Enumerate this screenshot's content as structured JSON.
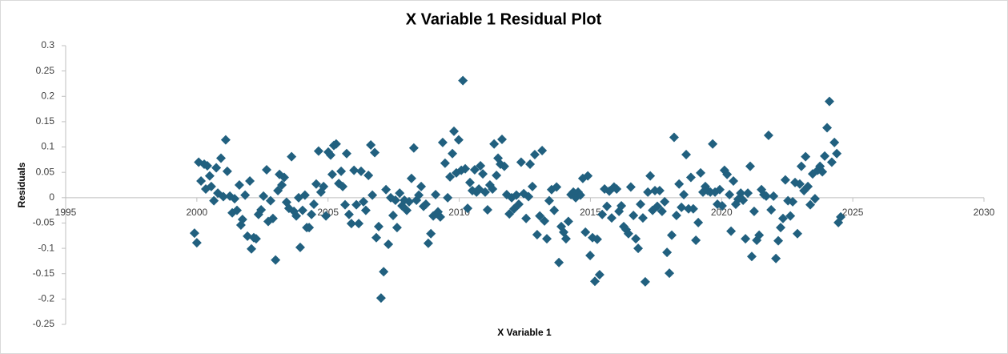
{
  "chart_data": {
    "type": "scatter",
    "title": "X Variable 1  Residual Plot",
    "x_label": "X Variable 1",
    "y_label": "Residuals",
    "color": "#21607f",
    "xlim": [
      1995,
      2030
    ],
    "xticks": [
      1995,
      2000,
      2005,
      2010,
      2015,
      2020,
      2025,
      2030
    ],
    "ylim": [
      -0.25,
      0.3
    ],
    "yticks": [
      -0.25,
      -0.2,
      -0.15,
      -0.1,
      -0.05,
      0,
      0.05,
      0.1,
      0.15,
      0.2,
      0.25,
      0.3
    ],
    "x": [
      1999.91,
      2000.0,
      2000.07,
      2000.16,
      2000.28,
      2000.34,
      2000.4,
      2000.49,
      2000.55,
      2000.65,
      2000.74,
      2000.8,
      2000.92,
      2001.01,
      2001.1,
      2001.16,
      2001.26,
      2001.35,
      2001.44,
      2001.53,
      2001.62,
      2001.68,
      2001.74,
      2001.84,
      2001.93,
      2002.02,
      2002.08,
      2002.17,
      2002.26,
      2002.35,
      2002.45,
      2002.54,
      2002.66,
      2002.72,
      2002.81,
      2002.9,
      2003.0,
      2003.09,
      2003.15,
      2003.24,
      2003.33,
      2003.42,
      2003.51,
      2003.61,
      2003.7,
      2003.79,
      2003.88,
      2003.94,
      2004.03,
      2004.12,
      2004.19,
      2004.28,
      2004.37,
      2004.46,
      2004.55,
      2004.64,
      2004.73,
      2004.83,
      2004.92,
      2005.01,
      2005.1,
      2005.16,
      2005.22,
      2005.31,
      2005.41,
      2005.5,
      2005.56,
      2005.65,
      2005.71,
      2005.8,
      2005.89,
      2005.99,
      2006.08,
      2006.17,
      2006.26,
      2006.35,
      2006.44,
      2006.54,
      2006.63,
      2006.69,
      2006.78,
      2006.84,
      2006.93,
      2007.02,
      2007.12,
      2007.21,
      2007.3,
      2007.39,
      2007.48,
      2007.57,
      2007.63,
      2007.73,
      2007.82,
      2007.91,
      2008.0,
      2008.09,
      2008.18,
      2008.27,
      2008.37,
      2008.46,
      2008.55,
      2008.64,
      2008.73,
      2008.82,
      2008.92,
      2009.01,
      2009.1,
      2009.19,
      2009.28,
      2009.37,
      2009.46,
      2009.56,
      2009.65,
      2009.74,
      2009.8,
      2009.89,
      2009.98,
      2010.08,
      2010.14,
      2010.23,
      2010.32,
      2010.41,
      2010.5,
      2010.59,
      2010.66,
      2010.75,
      2010.81,
      2010.9,
      2010.99,
      2011.08,
      2011.17,
      2011.27,
      2011.33,
      2011.42,
      2011.48,
      2011.57,
      2011.63,
      2011.72,
      2011.81,
      2011.91,
      2012.0,
      2012.09,
      2012.18,
      2012.27,
      2012.36,
      2012.46,
      2012.55,
      2012.64,
      2012.7,
      2012.79,
      2012.88,
      2012.97,
      2013.07,
      2013.16,
      2013.25,
      2013.34,
      2013.43,
      2013.52,
      2013.62,
      2013.71,
      2013.8,
      2013.89,
      2013.98,
      2014.07,
      2014.16,
      2014.26,
      2014.35,
      2014.44,
      2014.53,
      2014.62,
      2014.71,
      2014.81,
      2014.9,
      2014.99,
      2015.08,
      2015.17,
      2015.26,
      2015.35,
      2015.45,
      2015.54,
      2015.63,
      2015.72,
      2015.81,
      2015.9,
      2016.0,
      2016.09,
      2016.18,
      2016.27,
      2016.36,
      2016.45,
      2016.54,
      2016.64,
      2016.73,
      2016.82,
      2016.91,
      2017.0,
      2017.09,
      2017.19,
      2017.28,
      2017.37,
      2017.46,
      2017.55,
      2017.64,
      2017.73,
      2017.83,
      2017.92,
      2018.01,
      2018.1,
      2018.19,
      2018.28,
      2018.38,
      2018.47,
      2018.56,
      2018.65,
      2018.74,
      2018.83,
      2018.92,
      2019.02,
      2019.11,
      2019.2,
      2019.29,
      2019.38,
      2019.47,
      2019.57,
      2019.66,
      2019.75,
      2019.84,
      2019.93,
      2020.02,
      2020.11,
      2020.21,
      2020.3,
      2020.36,
      2020.45,
      2020.54,
      2020.63,
      2020.73,
      2020.82,
      2020.91,
      2021.0,
      2021.09,
      2021.15,
      2021.24,
      2021.34,
      2021.43,
      2021.52,
      2021.61,
      2021.7,
      2021.79,
      2021.89,
      2021.98,
      2022.07,
      2022.16,
      2022.25,
      2022.34,
      2022.43,
      2022.53,
      2022.62,
      2022.71,
      2022.8,
      2022.89,
      2022.98,
      2023.04,
      2023.14,
      2023.2,
      2023.29,
      2023.38,
      2023.47,
      2023.56,
      2023.66,
      2023.75,
      2023.84,
      2023.93,
      2024.02,
      2024.11,
      2024.2,
      2024.3,
      2024.39,
      2024.45,
      2024.54
    ],
    "values": [
      -0.07,
      -0.089,
      0.07,
      0.033,
      0.066,
      0.017,
      0.063,
      0.043,
      0.022,
      -0.006,
      0.059,
      0.009,
      0.078,
      0.002,
      0.114,
      0.052,
      0.003,
      -0.03,
      -0.002,
      -0.025,
      0.025,
      -0.054,
      -0.043,
      0.005,
      -0.076,
      0.033,
      -0.101,
      -0.079,
      -0.081,
      -0.033,
      -0.024,
      0.003,
      0.055,
      -0.047,
      -0.006,
      -0.041,
      -0.123,
      0.014,
      0.046,
      0.025,
      0.04,
      -0.009,
      -0.021,
      0.081,
      -0.027,
      -0.036,
      0.0,
      -0.098,
      -0.025,
      0.005,
      -0.059,
      -0.059,
      -0.033,
      -0.013,
      0.027,
      0.092,
      0.011,
      0.022,
      -0.036,
      0.09,
      0.084,
      0.046,
      0.103,
      0.106,
      0.028,
      0.052,
      0.022,
      -0.014,
      0.087,
      -0.033,
      -0.051,
      0.054,
      -0.014,
      -0.051,
      0.052,
      -0.008,
      -0.025,
      0.044,
      0.104,
      0.005,
      0.089,
      -0.079,
      -0.057,
      -0.198,
      -0.146,
      0.016,
      -0.092,
      0.0,
      -0.035,
      -0.005,
      -0.059,
      0.009,
      -0.016,
      -0.005,
      -0.025,
      -0.008,
      0.038,
      0.098,
      -0.005,
      0.005,
      0.022,
      -0.017,
      -0.013,
      -0.09,
      -0.071,
      -0.036,
      0.006,
      -0.028,
      -0.038,
      0.109,
      0.068,
      0.0,
      0.041,
      0.087,
      0.131,
      0.049,
      0.114,
      0.054,
      0.231,
      0.057,
      -0.021,
      0.03,
      0.014,
      0.055,
      0.011,
      0.017,
      0.063,
      0.047,
      0.011,
      -0.024,
      0.025,
      0.017,
      0.106,
      0.044,
      0.078,
      0.066,
      0.115,
      0.062,
      0.006,
      -0.032,
      0.0,
      -0.022,
      0.005,
      -0.013,
      0.07,
      0.008,
      -0.041,
      0.002,
      0.066,
      0.022,
      0.085,
      -0.073,
      -0.036,
      0.093,
      -0.046,
      -0.081,
      -0.006,
      0.016,
      -0.025,
      0.021,
      -0.128,
      -0.057,
      -0.068,
      -0.081,
      -0.047,
      0.006,
      0.011,
      0.0,
      0.011,
      0.005,
      0.038,
      -0.068,
      0.043,
      -0.114,
      -0.079,
      -0.165,
      -0.082,
      -0.152,
      -0.033,
      0.017,
      -0.017,
      0.013,
      -0.04,
      0.021,
      0.017,
      -0.027,
      -0.016,
      -0.057,
      -0.063,
      -0.071,
      0.021,
      -0.035,
      -0.081,
      -0.1,
      -0.013,
      -0.04,
      -0.166,
      0.011,
      0.043,
      -0.025,
      0.014,
      -0.017,
      0.014,
      -0.027,
      -0.008,
      -0.108,
      -0.149,
      -0.074,
      0.119,
      -0.035,
      0.027,
      -0.019,
      0.006,
      0.085,
      -0.022,
      0.04,
      -0.022,
      -0.084,
      -0.049,
      0.049,
      0.011,
      0.022,
      0.014,
      0.011,
      0.106,
      0.011,
      -0.013,
      0.016,
      -0.016,
      0.054,
      0.046,
      0.006,
      -0.066,
      0.033,
      -0.013,
      -0.003,
      0.009,
      -0.005,
      -0.081,
      0.009,
      0.062,
      -0.116,
      -0.027,
      -0.084,
      -0.074,
      0.016,
      0.006,
      0.003,
      0.123,
      -0.024,
      0.003,
      -0.12,
      -0.085,
      -0.059,
      -0.041,
      0.035,
      -0.006,
      -0.036,
      -0.008,
      0.03,
      -0.071,
      0.027,
      0.062,
      0.014,
      0.081,
      0.022,
      -0.014,
      0.047,
      -0.002,
      0.054,
      0.062,
      0.051,
      0.082,
      0.138,
      0.19,
      0.07,
      0.109,
      0.087,
      -0.049,
      -0.038
    ]
  }
}
